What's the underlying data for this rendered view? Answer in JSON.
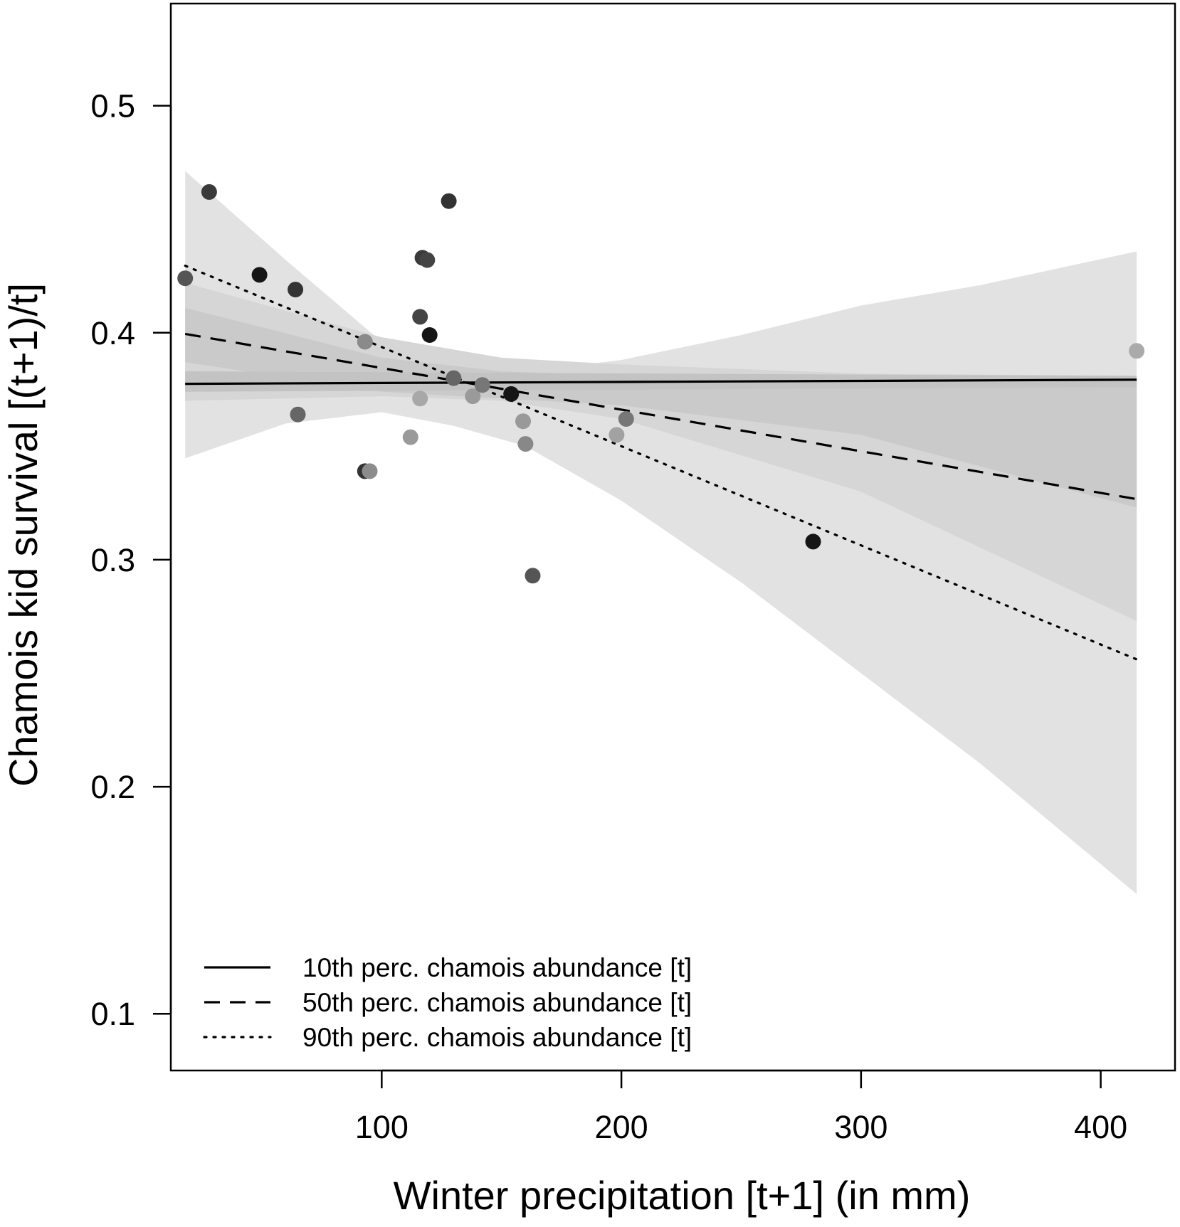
{
  "chart_data": {
    "type": "scatter",
    "xlabel": "Winter precipitation [t+1] (in mm)",
    "ylabel": "Chamois kid survival [(t+1)/t]",
    "xlim": [
      12,
      431
    ],
    "ylim": [
      0.075,
      0.545
    ],
    "x_ticks": [
      100,
      200,
      300,
      400
    ],
    "y_ticks": [
      0.1,
      0.2,
      0.3,
      0.4,
      0.5
    ],
    "x_tick_labels": [
      "100",
      "200",
      "300",
      "400"
    ],
    "y_tick_labels": [
      "0.1",
      "0.2",
      "0.3",
      "0.4",
      "0.5"
    ],
    "grid": false,
    "legend_position": "bottom-left",
    "series": [
      {
        "name": "10th perc. chamois abundance [t]",
        "linestyle": "solid",
        "x": [
          18,
          415
        ],
        "y": [
          0.3775,
          0.3793
        ]
      },
      {
        "name": "50th perc. chamois abundance [t]",
        "linestyle": "dashed",
        "x": [
          18,
          415
        ],
        "y": [
          0.3995,
          0.3267
        ]
      },
      {
        "name": "90th perc. chamois abundance [t]",
        "linestyle": "dotted",
        "x": [
          18,
          415
        ],
        "y": [
          0.4295,
          0.2561
        ]
      }
    ],
    "bands": [
      {
        "fill": "#e2e2e2",
        "x": [
          18,
          60,
          100,
          130,
          160,
          200,
          250,
          300,
          350,
          415
        ],
        "upper": [
          0.4712,
          0.432,
          0.396,
          0.385,
          0.383,
          0.388,
          0.399,
          0.412,
          0.421,
          0.4358
        ],
        "lower": [
          0.3447,
          0.36,
          0.365,
          0.359,
          0.35,
          0.326,
          0.29,
          0.25,
          0.21,
          0.1527
        ]
      },
      {
        "fill": "#d6d6d6",
        "x": [
          18,
          100,
          150,
          200,
          300,
          415
        ],
        "upper": [
          0.422,
          0.398,
          0.389,
          0.386,
          0.382,
          0.381
        ],
        "lower": [
          0.37,
          0.372,
          0.37,
          0.362,
          0.33,
          0.273
        ]
      },
      {
        "fill": "#cacaca",
        "x": [
          18,
          100,
          150,
          200,
          300,
          415
        ],
        "upper": [
          0.411,
          0.389,
          0.383,
          0.381,
          0.38,
          0.379
        ],
        "lower": [
          0.387,
          0.374,
          0.371,
          0.368,
          0.355,
          0.323
        ]
      },
      {
        "fill": "#c3c3c3",
        "x": [
          18,
          415
        ],
        "upper": [
          0.383,
          0.381
        ],
        "lower": [
          0.374,
          0.376
        ]
      }
    ],
    "points": [
      {
        "x": 18,
        "y": 0.424,
        "color": "#555555"
      },
      {
        "x": 28,
        "y": 0.462,
        "color": "#3a3a3a"
      },
      {
        "x": 49,
        "y": 0.4255,
        "color": "#151515"
      },
      {
        "x": 64,
        "y": 0.419,
        "color": "#333333"
      },
      {
        "x": 65,
        "y": 0.364,
        "color": "#666666"
      },
      {
        "x": 93,
        "y": 0.396,
        "color": "#8a8a8a"
      },
      {
        "x": 93,
        "y": 0.339,
        "color": "#333333"
      },
      {
        "x": 95,
        "y": 0.339,
        "color": "#8c8c8c"
      },
      {
        "x": 112,
        "y": 0.354,
        "color": "#9a9a9a"
      },
      {
        "x": 116,
        "y": 0.407,
        "color": "#444444"
      },
      {
        "x": 116,
        "y": 0.371,
        "color": "#a8a8a8"
      },
      {
        "x": 117,
        "y": 0.433,
        "color": "#3a3a3a"
      },
      {
        "x": 119,
        "y": 0.432,
        "color": "#444444"
      },
      {
        "x": 120,
        "y": 0.399,
        "color": "#151515"
      },
      {
        "x": 128,
        "y": 0.458,
        "color": "#333333"
      },
      {
        "x": 130,
        "y": 0.38,
        "color": "#666666"
      },
      {
        "x": 138,
        "y": 0.372,
        "color": "#9a9a9a"
      },
      {
        "x": 142,
        "y": 0.377,
        "color": "#777777"
      },
      {
        "x": 154,
        "y": 0.373,
        "color": "#151515"
      },
      {
        "x": 159,
        "y": 0.361,
        "color": "#999999"
      },
      {
        "x": 160,
        "y": 0.351,
        "color": "#888888"
      },
      {
        "x": 163,
        "y": 0.293,
        "color": "#555555"
      },
      {
        "x": 198,
        "y": 0.355,
        "color": "#a2a2a2"
      },
      {
        "x": 202,
        "y": 0.362,
        "color": "#777777"
      },
      {
        "x": 280,
        "y": 0.308,
        "color": "#151515"
      },
      {
        "x": 415,
        "y": 0.392,
        "color": "#aaaaaa"
      }
    ]
  }
}
